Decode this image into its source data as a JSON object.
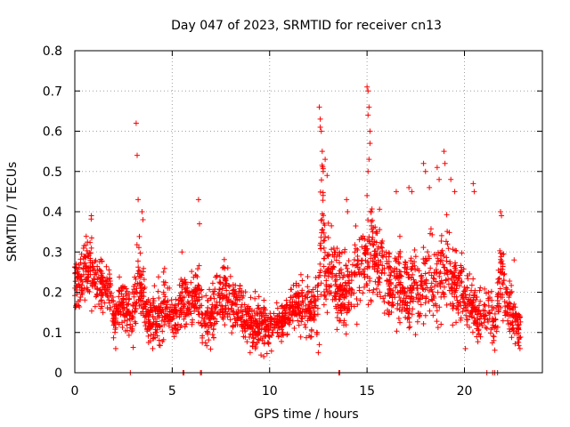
{
  "chart_data": {
    "type": "scatter",
    "title": "Day 047 of 2023, SRMTID for receiver cn13",
    "xlabel": "GPS time / hours",
    "ylabel": "SRMTID / TECUs",
    "xlim": [
      0,
      24
    ],
    "ylim": [
      0,
      0.8
    ],
    "xticks": [
      0,
      5,
      10,
      15,
      20
    ],
    "yticks": [
      0,
      0.1,
      0.2,
      0.3,
      0.4,
      0.5,
      0.6,
      0.7,
      0.8
    ],
    "xtick_labels": [
      "0",
      "5",
      "10",
      "15",
      "20"
    ],
    "ytick_labels": [
      "0",
      "0.1",
      "0.2",
      "0.3",
      "0.4",
      "0.5",
      "0.6",
      "0.7",
      "0.8"
    ],
    "grid": true,
    "marker": "+",
    "color": "#ff0000",
    "series": [
      {
        "name": "SRMTID",
        "profile_hours": [
          0,
          0.3,
          0.6,
          0.9,
          1.2,
          1.5,
          1.8,
          2.0,
          2.2,
          2.5,
          2.8,
          3.0,
          3.2,
          3.5,
          3.8,
          4.0,
          4.3,
          4.6,
          5.0,
          5.3,
          5.6,
          6.0,
          6.3,
          6.6,
          7.0,
          7.3,
          7.6,
          8.0,
          8.4,
          8.8,
          9.2,
          9.6,
          10.0,
          10.3,
          10.6,
          11.0,
          11.3,
          11.6,
          11.9,
          12.2,
          12.5,
          12.7,
          12.9,
          13.2,
          13.5,
          13.8,
          14.1,
          14.4,
          14.7,
          15.0,
          15.3,
          15.6,
          15.9,
          16.2,
          16.5,
          16.8,
          17.1,
          17.4,
          17.7,
          18.0,
          18.3,
          18.6,
          18.9,
          19.2,
          19.5,
          19.8,
          20.1,
          20.4,
          20.7,
          21.0,
          21.3,
          21.6,
          21.9,
          22.2,
          22.5,
          22.8
        ],
        "profile_median": [
          0.21,
          0.23,
          0.26,
          0.25,
          0.23,
          0.22,
          0.2,
          0.13,
          0.16,
          0.17,
          0.15,
          0.14,
          0.25,
          0.18,
          0.12,
          0.14,
          0.15,
          0.16,
          0.14,
          0.15,
          0.18,
          0.17,
          0.2,
          0.13,
          0.14,
          0.18,
          0.19,
          0.17,
          0.16,
          0.14,
          0.12,
          0.13,
          0.11,
          0.12,
          0.12,
          0.16,
          0.17,
          0.17,
          0.15,
          0.16,
          0.18,
          0.4,
          0.23,
          0.28,
          0.22,
          0.19,
          0.2,
          0.23,
          0.27,
          0.3,
          0.3,
          0.27,
          0.25,
          0.21,
          0.22,
          0.2,
          0.19,
          0.22,
          0.2,
          0.22,
          0.23,
          0.2,
          0.27,
          0.24,
          0.22,
          0.2,
          0.19,
          0.16,
          0.15,
          0.14,
          0.14,
          0.13,
          0.26,
          0.16,
          0.15,
          0.11
        ],
        "profile_spread": [
          0.05,
          0.06,
          0.07,
          0.07,
          0.06,
          0.05,
          0.05,
          0.04,
          0.05,
          0.05,
          0.05,
          0.05,
          0.09,
          0.06,
          0.04,
          0.05,
          0.06,
          0.06,
          0.05,
          0.05,
          0.06,
          0.06,
          0.07,
          0.05,
          0.05,
          0.06,
          0.06,
          0.05,
          0.05,
          0.05,
          0.05,
          0.05,
          0.04,
          0.04,
          0.04,
          0.05,
          0.05,
          0.05,
          0.05,
          0.05,
          0.07,
          0.15,
          0.08,
          0.09,
          0.08,
          0.07,
          0.07,
          0.08,
          0.09,
          0.1,
          0.1,
          0.09,
          0.09,
          0.07,
          0.08,
          0.07,
          0.07,
          0.09,
          0.08,
          0.09,
          0.09,
          0.08,
          0.1,
          0.09,
          0.08,
          0.08,
          0.07,
          0.06,
          0.05,
          0.05,
          0.05,
          0.05,
          0.08,
          0.06,
          0.05,
          0.04
        ],
        "points_per_hour": 110,
        "coverage_end_hour": 22.9,
        "peaks": [
          {
            "x": 3.15,
            "y": 0.62
          },
          {
            "x": 3.2,
            "y": 0.54
          },
          {
            "x": 3.25,
            "y": 0.43
          },
          {
            "x": 3.45,
            "y": 0.4
          },
          {
            "x": 3.5,
            "y": 0.38
          },
          {
            "x": 6.35,
            "y": 0.43
          },
          {
            "x": 6.4,
            "y": 0.37
          },
          {
            "x": 0.85,
            "y": 0.39
          },
          {
            "x": 5.5,
            "y": 0.3
          },
          {
            "x": 12.55,
            "y": 0.66
          },
          {
            "x": 12.6,
            "y": 0.63
          },
          {
            "x": 12.6,
            "y": 0.61
          },
          {
            "x": 12.65,
            "y": 0.6
          },
          {
            "x": 12.7,
            "y": 0.55
          },
          {
            "x": 12.75,
            "y": 0.5
          },
          {
            "x": 12.85,
            "y": 0.53
          },
          {
            "x": 12.95,
            "y": 0.49
          },
          {
            "x": 13.95,
            "y": 0.43
          },
          {
            "x": 14.0,
            "y": 0.4
          },
          {
            "x": 15.0,
            "y": 0.71
          },
          {
            "x": 15.05,
            "y": 0.7
          },
          {
            "x": 15.1,
            "y": 0.66
          },
          {
            "x": 15.05,
            "y": 0.64
          },
          {
            "x": 15.15,
            "y": 0.6
          },
          {
            "x": 15.15,
            "y": 0.57
          },
          {
            "x": 15.1,
            "y": 0.53
          },
          {
            "x": 15.05,
            "y": 0.5
          },
          {
            "x": 15.0,
            "y": 0.44
          },
          {
            "x": 16.5,
            "y": 0.45
          },
          {
            "x": 17.15,
            "y": 0.46
          },
          {
            "x": 17.3,
            "y": 0.45
          },
          {
            "x": 17.9,
            "y": 0.52
          },
          {
            "x": 18.0,
            "y": 0.5
          },
          {
            "x": 18.2,
            "y": 0.46
          },
          {
            "x": 18.6,
            "y": 0.51
          },
          {
            "x": 18.7,
            "y": 0.48
          },
          {
            "x": 18.95,
            "y": 0.55
          },
          {
            "x": 19.0,
            "y": 0.52
          },
          {
            "x": 19.3,
            "y": 0.48
          },
          {
            "x": 19.5,
            "y": 0.45
          },
          {
            "x": 20.45,
            "y": 0.47
          },
          {
            "x": 20.5,
            "y": 0.45
          },
          {
            "x": 21.85,
            "y": 0.4
          },
          {
            "x": 21.9,
            "y": 0.39
          },
          {
            "x": 22.55,
            "y": 0.28
          },
          {
            "x": 12.5,
            "y": 0.05
          },
          {
            "x": 12.55,
            "y": 0.07
          },
          {
            "x": 9.0,
            "y": 0.05
          },
          {
            "x": 9.7,
            "y": 0.04
          },
          {
            "x": 2.1,
            "y": 0.06
          },
          {
            "x": 4.0,
            "y": 0.06
          },
          {
            "x": 20.05,
            "y": 0.06
          },
          {
            "x": 22.85,
            "y": 0.06
          }
        ],
        "zero_points": [
          2.85,
          5.55,
          5.6,
          6.45,
          6.5,
          13.55,
          13.6,
          21.15,
          21.45,
          21.55,
          21.7
        ]
      }
    ]
  }
}
